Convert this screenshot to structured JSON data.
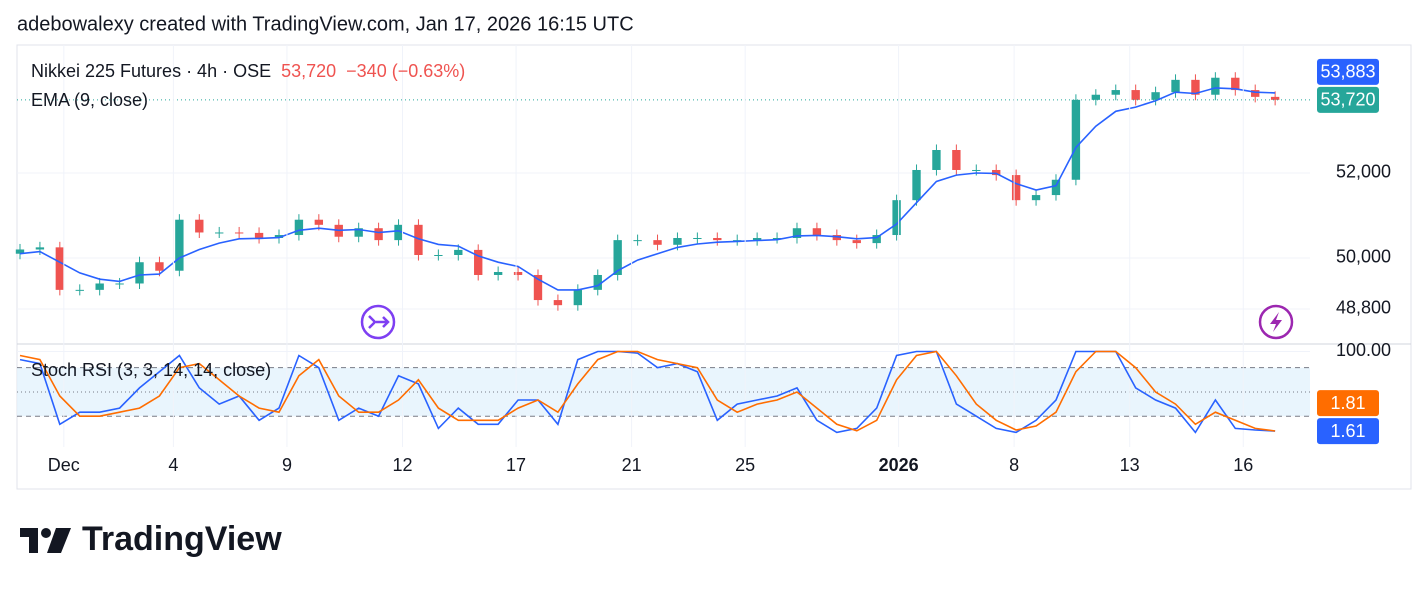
{
  "attribution": "adebowalexy created with TradingView.com, Jan 17, 2026 16:15 UTC",
  "brand": "TradingView",
  "chart_data": [
    {
      "type": "candlestick",
      "title": "Nikkei 225 Futures · 4h · OSE",
      "last_label": "53,720",
      "change_label": "−340 (−0.63%)",
      "up_color": "#26a69a",
      "down_color": "#ef5350",
      "open": [
        50100,
        50200,
        50250,
        49250,
        49250,
        49400,
        49400,
        49900,
        49700,
        50900,
        50600,
        50600,
        50590,
        50470,
        50540,
        50900,
        50780,
        50500,
        50700,
        50420,
        50780,
        50070,
        50070,
        50190,
        49600,
        49670,
        49600,
        49010,
        48890,
        49250,
        49600,
        50420,
        50420,
        50310,
        50470,
        50470,
        50420,
        50420,
        50470,
        50470,
        50700,
        50540,
        50420,
        50350,
        50540,
        51360,
        52070,
        52540,
        52070,
        52070,
        51950,
        51360,
        51480,
        51840,
        53720,
        53840,
        53950,
        53720,
        53900,
        54190,
        53840,
        54240,
        53950,
        53790
      ],
      "high": [
        50330,
        50380,
        50380,
        49380,
        49530,
        49530,
        50030,
        50030,
        51030,
        51030,
        50730,
        50730,
        50720,
        50670,
        51030,
        51030,
        50910,
        50830,
        50830,
        50910,
        50910,
        50200,
        50320,
        50320,
        49800,
        49800,
        49730,
        49140,
        49380,
        49730,
        50550,
        50550,
        50550,
        50600,
        50600,
        50600,
        50550,
        50600,
        50600,
        50830,
        50830,
        50670,
        50550,
        50670,
        51490,
        52200,
        52670,
        52670,
        52200,
        52200,
        52080,
        51610,
        51970,
        53850,
        53970,
        54080,
        54080,
        54030,
        54320,
        54320,
        54370,
        54370,
        54080,
        53920
      ],
      "low": [
        49970,
        50070,
        49120,
        49120,
        49120,
        49270,
        49270,
        49570,
        49570,
        50470,
        50470,
        50460,
        50340,
        50340,
        50410,
        50650,
        50370,
        50370,
        50290,
        50290,
        49940,
        49940,
        49940,
        49470,
        49470,
        49470,
        48880,
        48760,
        48760,
        49120,
        49470,
        50290,
        50180,
        50180,
        50340,
        50290,
        50290,
        50290,
        50340,
        50340,
        50410,
        50290,
        50220,
        50220,
        50410,
        51230,
        51940,
        51940,
        51940,
        51820,
        51230,
        51230,
        51350,
        51710,
        53590,
        53710,
        53590,
        53590,
        53770,
        53710,
        53710,
        53820,
        53660,
        53590
      ],
      "close": [
        50200,
        50250,
        49250,
        49250,
        49400,
        49400,
        49900,
        49700,
        50900,
        50600,
        50600,
        50590,
        50470,
        50540,
        50900,
        50780,
        50500,
        50700,
        50420,
        50780,
        50070,
        50070,
        50190,
        49600,
        49670,
        49600,
        49010,
        48890,
        49250,
        49600,
        50420,
        50420,
        50310,
        50470,
        50470,
        50420,
        50420,
        50470,
        50470,
        50700,
        50540,
        50420,
        50350,
        50540,
        51360,
        52070,
        52540,
        52070,
        52070,
        51950,
        51360,
        51480,
        51840,
        53720,
        53840,
        53950,
        53720,
        53900,
        54190,
        53840,
        54240,
        53950,
        53790,
        53720
      ],
      "series": [
        {
          "name": "EMA (9, close)",
          "color": "#2962ff",
          "last_label": "53,883",
          "values": [
            50100,
            50150,
            49900,
            49650,
            49500,
            49450,
            49600,
            49620,
            50000,
            50200,
            50350,
            50450,
            50460,
            50480,
            50650,
            50700,
            50650,
            50670,
            50600,
            50640,
            50450,
            50320,
            50280,
            50050,
            49900,
            49800,
            49500,
            49250,
            49250,
            49350,
            49700,
            49950,
            50100,
            50250,
            50330,
            50370,
            50390,
            50410,
            50430,
            50520,
            50530,
            50500,
            50450,
            50480,
            50800,
            51300,
            51800,
            51950,
            52000,
            51990,
            51750,
            51600,
            51700,
            52600,
            53100,
            53450,
            53550,
            53700,
            53900,
            53870,
            54000,
            53980,
            53900,
            53883
          ]
        }
      ],
      "xlim": [
        -0.15,
        64.75
      ],
      "ylim": [
        48000,
        55010
      ],
      "yticks": [
        {
          "value": 48800,
          "label": "48,800"
        },
        {
          "value": 50000,
          "label": "50,000"
        },
        {
          "value": 52000,
          "label": "52,000"
        }
      ],
      "grid": true
    },
    {
      "type": "line",
      "title": "Stoch RSI (3, 3, 14, 14, close)",
      "series": [
        {
          "name": "K",
          "color": "#2962ff",
          "values": [
            90,
            85,
            10,
            25,
            25,
            30,
            55,
            75,
            95,
            55,
            35,
            45,
            15,
            30,
            95,
            80,
            15,
            30,
            20,
            70,
            60,
            5,
            30,
            10,
            10,
            40,
            40,
            10,
            90,
            100,
            100,
            98,
            80,
            85,
            75,
            15,
            35,
            40,
            45,
            55,
            15,
            0,
            5,
            30,
            95,
            100,
            100,
            35,
            20,
            5,
            0,
            15,
            40,
            100,
            100,
            100,
            55,
            40,
            30,
            0,
            40,
            5,
            3,
            1.61
          ]
        },
        {
          "name": "D",
          "color": "#ff6d00",
          "values": [
            95,
            90,
            45,
            20,
            20,
            25,
            30,
            45,
            80,
            85,
            65,
            45,
            30,
            25,
            70,
            90,
            45,
            25,
            25,
            40,
            65,
            30,
            15,
            15,
            15,
            30,
            40,
            25,
            60,
            90,
            100,
            100,
            90,
            85,
            80,
            40,
            25,
            35,
            40,
            50,
            30,
            10,
            2,
            15,
            65,
            95,
            100,
            70,
            35,
            15,
            3,
            8,
            25,
            75,
            100,
            100,
            80,
            50,
            35,
            10,
            25,
            15,
            5,
            1.81
          ]
        }
      ],
      "levels": [
        80,
        50,
        20
      ],
      "band_color": "#e3f2fd",
      "xlim": [
        -0.15,
        64.75
      ],
      "ylim": [
        -18,
        108
      ],
      "yticks": [
        {
          "value": 100,
          "label": "100.00"
        }
      ],
      "xticks": [
        {
          "value": 2.2,
          "label": "Dec"
        },
        {
          "value": 7.7,
          "label": "4"
        },
        {
          "value": 13.4,
          "label": "9"
        },
        {
          "value": 19.2,
          "label": "12"
        },
        {
          "value": 24.9,
          "label": "17"
        },
        {
          "value": 30.7,
          "label": "21"
        },
        {
          "value": 36.4,
          "label": "25"
        },
        {
          "value": 44.1,
          "label": "2026"
        },
        {
          "value": 49.9,
          "label": "8"
        },
        {
          "value": 55.7,
          "label": "13"
        },
        {
          "value": 61.4,
          "label": "16"
        }
      ],
      "grid": true
    }
  ]
}
